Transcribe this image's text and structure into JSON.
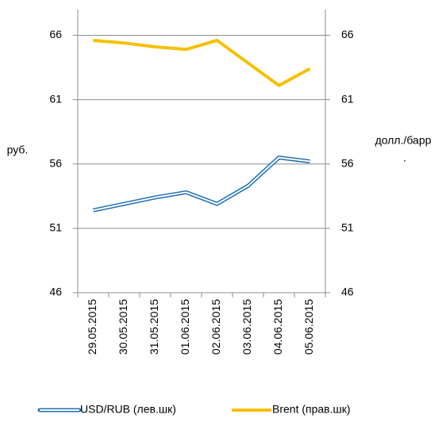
{
  "chart_data": {
    "type": "line",
    "categories": [
      "29.05.2015",
      "30.05.2015",
      "31.05.2015",
      "01.06.2015",
      "02.06.2015",
      "03.06.2015",
      "04.06.2015",
      "05.06.2015"
    ],
    "series": [
      {
        "name": "USD/RUB (лев.шк)",
        "color": "#1f6fb4",
        "values": [
          52.4,
          52.9,
          53.4,
          53.8,
          52.9,
          54.3,
          56.5,
          56.2
        ]
      },
      {
        "name": "Brent (прав.шк)",
        "color": "#f5c000",
        "axis": "y2",
        "values": [
          65.6,
          65.4,
          65.1,
          64.9,
          65.6,
          63.85,
          62.1,
          63.4
        ]
      }
    ],
    "ylim": [
      46,
      68
    ],
    "yticks": [
      46,
      51,
      56,
      61,
      66
    ],
    "y2lim": [
      46,
      68
    ],
    "y2ticks": [
      46,
      51,
      56,
      61,
      66
    ],
    "ylabel": "руб.",
    "y2label": [
      "долл./барр",
      "."
    ],
    "grid": true,
    "legend": "bottom"
  }
}
